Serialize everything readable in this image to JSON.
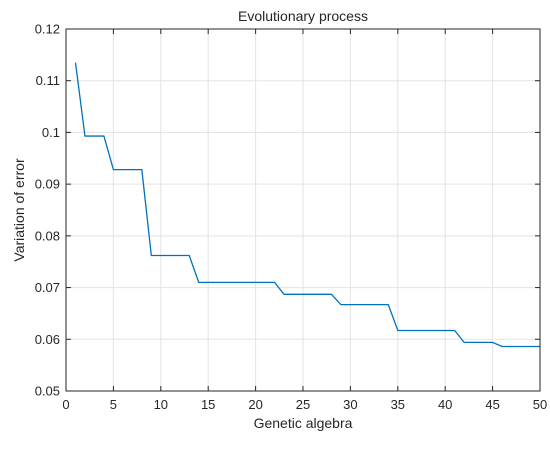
{
  "chart_data": {
    "type": "line",
    "title": "Evolutionary process",
    "xlabel": "Genetic algebra",
    "ylabel": "Variation of error",
    "xlim": [
      0,
      50
    ],
    "ylim": [
      0.05,
      0.12
    ],
    "xticks": [
      0,
      5,
      10,
      15,
      20,
      25,
      30,
      35,
      40,
      45,
      50
    ],
    "yticks": [
      0.05,
      0.06,
      0.07,
      0.08,
      0.09,
      0.1,
      0.11,
      0.12
    ],
    "xtick_labels": [
      "0",
      "5",
      "10",
      "15",
      "20",
      "25",
      "30",
      "35",
      "40",
      "45",
      "50"
    ],
    "ytick_labels": [
      "0.05",
      "0.06",
      "0.07",
      "0.08",
      "0.09",
      "0.1",
      "0.11",
      "0.12"
    ],
    "grid": true,
    "box": true,
    "series": [
      {
        "color": "#0072bd",
        "x": [
          1,
          2,
          3,
          4,
          5,
          6,
          7,
          8,
          9,
          10,
          11,
          12,
          13,
          14,
          15,
          16,
          17,
          18,
          19,
          20,
          21,
          22,
          23,
          24,
          25,
          26,
          27,
          28,
          29,
          30,
          31,
          32,
          33,
          34,
          35,
          36,
          37,
          38,
          39,
          40,
          41,
          42,
          43,
          44,
          45,
          46,
          47,
          48,
          49,
          50
        ],
        "y": [
          0.1135,
          0.0993,
          0.0993,
          0.0993,
          0.0928,
          0.0928,
          0.0928,
          0.0928,
          0.0762,
          0.0762,
          0.0762,
          0.0762,
          0.0762,
          0.071,
          0.071,
          0.071,
          0.071,
          0.071,
          0.071,
          0.071,
          0.071,
          0.071,
          0.0687,
          0.0687,
          0.0687,
          0.0687,
          0.0687,
          0.0687,
          0.0667,
          0.0667,
          0.0667,
          0.0667,
          0.0667,
          0.0667,
          0.0617,
          0.0617,
          0.0617,
          0.0617,
          0.0617,
          0.0617,
          0.0617,
          0.0594,
          0.0594,
          0.0594,
          0.0594,
          0.0586,
          0.0586,
          0.0586,
          0.0586,
          0.0586
        ]
      }
    ]
  }
}
